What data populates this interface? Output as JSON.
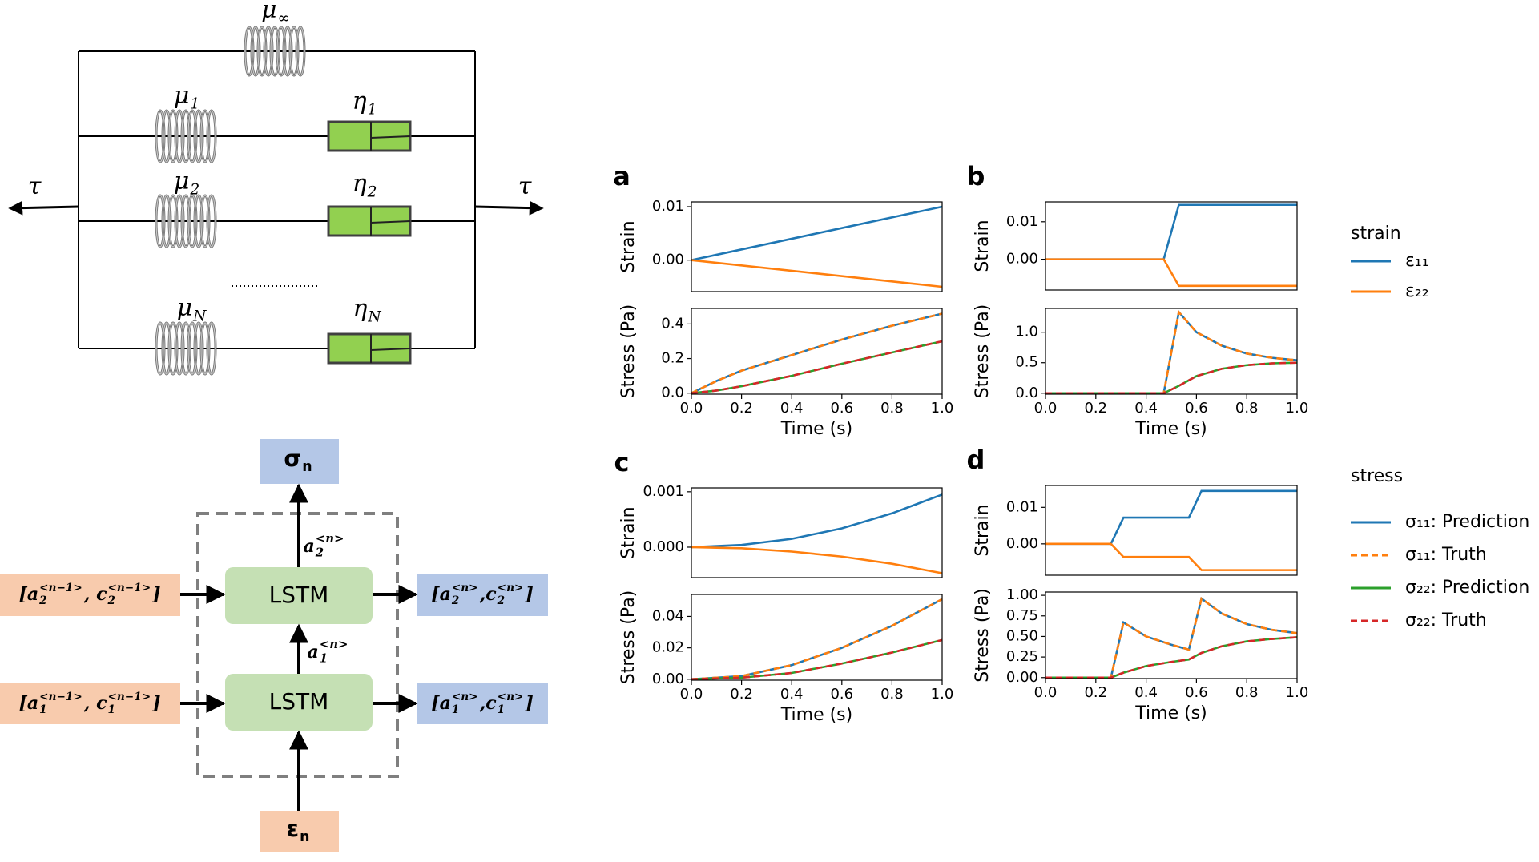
{
  "model": {
    "springs": [
      [
        {
          "text": "μ"
        },
        {
          "sub": "∞"
        }
      ],
      [
        {
          "text": "μ"
        },
        {
          "sub": "1"
        }
      ],
      [
        {
          "text": "μ"
        },
        {
          "sub": "2"
        }
      ],
      [
        {
          "text": "μ"
        },
        {
          "sub": "N"
        }
      ]
    ],
    "dashpots": [
      [
        {
          "text": "η"
        },
        {
          "sub": "1"
        }
      ],
      [
        {
          "text": "η"
        },
        {
          "sub": "2"
        }
      ],
      [
        {
          "text": "η"
        },
        {
          "sub": "N"
        }
      ]
    ],
    "force": [
      "τ",
      "τ"
    ]
  },
  "lstm": {
    "output": [
      {
        "text": "σ"
      },
      {
        "sub": "n"
      }
    ],
    "input": [
      {
        "text": "ε"
      },
      {
        "sub": "n"
      }
    ],
    "cells": [
      "LSTM",
      "LSTM"
    ],
    "hidden": [
      [
        {
          "text": "a"
        },
        {
          "sup": "<n>",
          "sub": "2"
        }
      ],
      [
        {
          "text": "a"
        },
        {
          "sup": "<n>",
          "sub": "1"
        }
      ]
    ],
    "prev": [
      [
        {
          "text": "[a"
        },
        {
          "sup": "<n−1>",
          "sub": "2"
        },
        {
          "text": ", c"
        },
        {
          "sup": "<n−1>",
          "sub": "2"
        },
        {
          "text": "]"
        }
      ],
      [
        {
          "text": "[a"
        },
        {
          "sup": "<n−1>",
          "sub": "1"
        },
        {
          "text": ", c"
        },
        {
          "sup": "<n−1>",
          "sub": "1"
        },
        {
          "text": "]"
        }
      ]
    ],
    "next": [
      [
        {
          "text": "[a"
        },
        {
          "sup": "<n>",
          "sub": "2"
        },
        {
          "text": ",c"
        },
        {
          "sup": "<n>",
          "sub": "2"
        },
        {
          "text": "]"
        }
      ],
      [
        {
          "text": "[a"
        },
        {
          "sup": "<n>",
          "sub": "1"
        },
        {
          "text": ",c"
        },
        {
          "sup": "<n>",
          "sub": "1"
        },
        {
          "text": "]"
        }
      ]
    ]
  },
  "chart_data": [
    {
      "type": "line",
      "panel": "a",
      "y_label": "Strain",
      "xlim": [
        0,
        1
      ],
      "ylim": [
        -0.0059,
        0.0109
      ],
      "yticks": [
        {
          "value": 0,
          "label": "0.00"
        },
        0.01
      ],
      "x": [
        0,
        0.5,
        1.0
      ],
      "series": [
        {
          "color": "#1f77b4",
          "values": [
            0,
            0.005,
            0.01
          ]
        },
        {
          "color": "#ff7f0e",
          "values": [
            0,
            -0.0025,
            -0.005
          ]
        }
      ]
    },
    {
      "type": "line",
      "y_label": "Stress (Pa)",
      "x_label": "Time (s)",
      "xlim": [
        0,
        1
      ],
      "ylim": [
        -0.006,
        0.49
      ],
      "xticks": [
        {
          "value": 0,
          "label": "0.0"
        },
        0.2,
        0.4,
        0.6,
        0.8,
        {
          "value": 1,
          "label": "1.0"
        }
      ],
      "yticks": [
        {
          "value": 0,
          "label": "0.0"
        },
        0.2,
        0.4
      ],
      "x": [
        0,
        0.1,
        0.2,
        0.4,
        0.6,
        0.8,
        1.0
      ],
      "series": [
        {
          "color": "#1f77b4",
          "values": [
            0,
            0.07,
            0.13,
            0.22,
            0.31,
            0.39,
            0.46
          ]
        },
        {
          "color": "#ff7f0e",
          "dash": true,
          "values": [
            0,
            0.07,
            0.13,
            0.22,
            0.31,
            0.39,
            0.46
          ]
        },
        {
          "color": "#2ca02c",
          "values": [
            0,
            0.015,
            0.04,
            0.1,
            0.17,
            0.235,
            0.3
          ]
        },
        {
          "color": "#d62728",
          "dash": true,
          "values": [
            0,
            0.015,
            0.04,
            0.1,
            0.17,
            0.235,
            0.3
          ]
        }
      ]
    },
    {
      "type": "line",
      "panel": "b",
      "y_label": "Strain",
      "legend_title": "strain",
      "xlim": [
        0,
        1
      ],
      "ylim": [
        -0.0082,
        0.0153
      ],
      "yticks": [
        {
          "value": 0,
          "label": "0.00"
        },
        0.01
      ],
      "x": [
        0,
        0.47,
        0.53,
        1.0
      ],
      "series": [
        {
          "name": "ε₁₁",
          "color": "#1f77b4",
          "values": [
            0,
            0,
            0.0145,
            0.0145
          ]
        },
        {
          "name": "ε₂₂",
          "color": "#ff7f0e",
          "values": [
            0,
            0,
            -0.0071,
            -0.0071
          ]
        }
      ]
    },
    {
      "type": "line",
      "y_label": "Stress (Pa)",
      "x_label": "Time (s)",
      "xlim": [
        0,
        1
      ],
      "ylim": [
        -0.016,
        1.39
      ],
      "xticks": [
        {
          "value": 0,
          "label": "0.0"
        },
        0.2,
        0.4,
        0.6,
        0.8,
        {
          "value": 1,
          "label": "1.0"
        }
      ],
      "yticks": [
        {
          "value": 0,
          "label": "0.0"
        },
        0.5,
        {
          "value": 1,
          "label": "1.0"
        }
      ],
      "x": [
        0,
        0.47,
        0.53,
        0.6,
        0.7,
        0.8,
        0.9,
        1.0
      ],
      "series": [
        {
          "color": "#1f77b4",
          "values": [
            0,
            0,
            1.33,
            1.0,
            0.78,
            0.65,
            0.58,
            0.54
          ]
        },
        {
          "color": "#ff7f0e",
          "dash": true,
          "values": [
            0,
            0,
            1.33,
            1.0,
            0.78,
            0.65,
            0.58,
            0.54
          ]
        },
        {
          "color": "#2ca02c",
          "values": [
            0,
            0,
            0.12,
            0.28,
            0.4,
            0.46,
            0.49,
            0.5
          ]
        },
        {
          "color": "#d62728",
          "dash": true,
          "values": [
            0,
            0,
            0.12,
            0.28,
            0.4,
            0.46,
            0.49,
            0.5
          ]
        }
      ]
    },
    {
      "type": "line",
      "panel": "c",
      "y_label": "Strain",
      "xlim": [
        0,
        1
      ],
      "ylim": [
        -0.00055,
        0.00107
      ],
      "yticks": [
        {
          "value": 0,
          "label": "0.000"
        },
        0.001
      ],
      "x": [
        0,
        0.2,
        0.4,
        0.6,
        0.8,
        1.0
      ],
      "series": [
        {
          "color": "#1f77b4",
          "values": [
            0,
            4e-05,
            0.00015,
            0.00034,
            0.00061,
            0.00095
          ]
        },
        {
          "color": "#ff7f0e",
          "values": [
            0,
            -2e-05,
            -8e-05,
            -0.00017,
            -0.0003,
            -0.00047
          ]
        }
      ]
    },
    {
      "type": "line",
      "y_label": "Stress (Pa)",
      "x_label": "Time (s)",
      "xlim": [
        0,
        1
      ],
      "ylim": [
        -0.0006,
        0.054
      ],
      "xticks": [
        {
          "value": 0,
          "label": "0.0"
        },
        0.2,
        0.4,
        0.6,
        0.8,
        {
          "value": 1,
          "label": "1.0"
        }
      ],
      "yticks": [
        {
          "value": 0,
          "label": "0.00"
        },
        0.02,
        0.04
      ],
      "x": [
        0,
        0.2,
        0.4,
        0.6,
        0.8,
        1.0
      ],
      "series": [
        {
          "color": "#1f77b4",
          "values": [
            0,
            0.002,
            0.009,
            0.02,
            0.034,
            0.051
          ]
        },
        {
          "color": "#ff7f0e",
          "dash": true,
          "values": [
            0,
            0.002,
            0.009,
            0.02,
            0.034,
            0.051
          ]
        },
        {
          "color": "#2ca02c",
          "values": [
            0,
            0.001,
            0.004,
            0.01,
            0.017,
            0.025
          ]
        },
        {
          "color": "#d62728",
          "dash": true,
          "values": [
            0,
            0.001,
            0.004,
            0.01,
            0.017,
            0.025
          ]
        }
      ]
    },
    {
      "type": "line",
      "panel": "d",
      "y_label": "Strain",
      "xlim": [
        0,
        1
      ],
      "ylim": [
        -0.0086,
        0.016
      ],
      "yticks": [
        {
          "value": 0,
          "label": "0.00"
        },
        0.01
      ],
      "x": [
        0,
        0.26,
        0.31,
        0.57,
        0.62,
        1.0
      ],
      "series": [
        {
          "color": "#1f77b4",
          "values": [
            0,
            0,
            0.0072,
            0.0072,
            0.0145,
            0.0145
          ]
        },
        {
          "color": "#ff7f0e",
          "values": [
            0,
            0,
            -0.0036,
            -0.0036,
            -0.0072,
            -0.0072
          ]
        }
      ]
    },
    {
      "type": "line",
      "y_label": "Stress (Pa)",
      "x_label": "Time (s)",
      "legend_title": "stress",
      "xlim": [
        0,
        1
      ],
      "ylim": [
        -0.012,
        1.04
      ],
      "xticks": [
        {
          "value": 0,
          "label": "0.0"
        },
        0.2,
        0.4,
        0.6,
        0.8,
        {
          "value": 1,
          "label": "1.0"
        }
      ],
      "yticks": [
        {
          "value": 0,
          "label": "0.00"
        },
        0.25,
        {
          "value": 0.5,
          "label": "0.50"
        },
        0.75,
        {
          "value": 1,
          "label": "1.00"
        }
      ],
      "x": [
        0,
        0.26,
        0.31,
        0.4,
        0.5,
        0.57,
        0.62,
        0.7,
        0.8,
        0.9,
        1.0
      ],
      "series": [
        {
          "name": "σ₁₁: Prediction",
          "color": "#1f77b4",
          "values": [
            0,
            0,
            0.67,
            0.5,
            0.4,
            0.34,
            0.96,
            0.78,
            0.65,
            0.58,
            0.54
          ]
        },
        {
          "name": "σ₁₁: Truth",
          "color": "#ff7f0e",
          "dash": true,
          "values": [
            0,
            0,
            0.67,
            0.5,
            0.4,
            0.34,
            0.96,
            0.78,
            0.65,
            0.58,
            0.54
          ]
        },
        {
          "name": "σ₂₂: Prediction",
          "color": "#2ca02c",
          "values": [
            0,
            0,
            0.06,
            0.14,
            0.19,
            0.22,
            0.3,
            0.38,
            0.44,
            0.47,
            0.49
          ]
        },
        {
          "name": "σ₂₂: Truth",
          "color": "#d62728",
          "dash": true,
          "values": [
            0,
            0,
            0.06,
            0.14,
            0.19,
            0.22,
            0.3,
            0.38,
            0.44,
            0.47,
            0.49
          ]
        }
      ]
    }
  ]
}
